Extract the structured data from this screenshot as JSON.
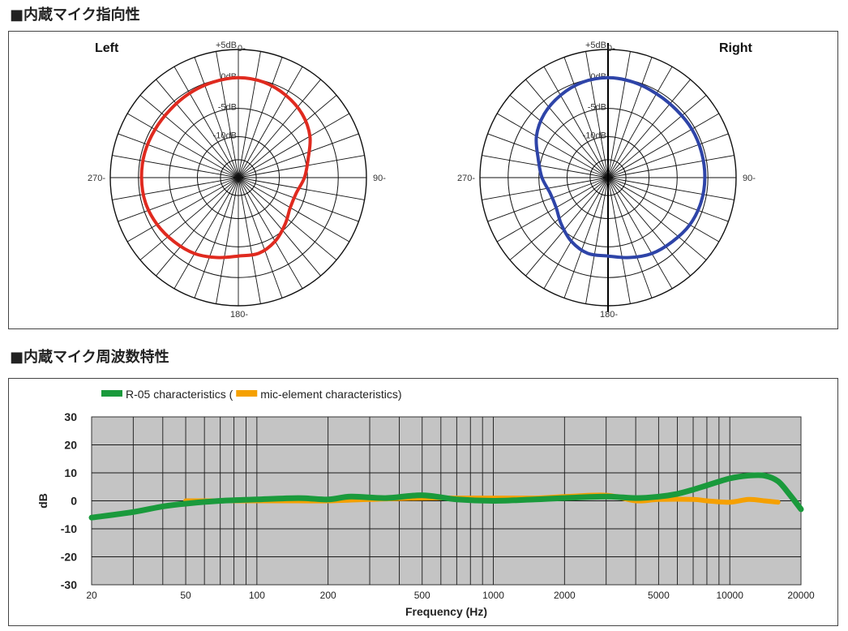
{
  "section1": {
    "title": "■内蔵マイク指向性"
  },
  "section2": {
    "title": "■内蔵マイク周波数特性"
  },
  "chart_data": [
    {
      "type": "polar",
      "title": "Left",
      "rings_db": [
        "+5dB",
        "0dB",
        "-5dB",
        "-10dB"
      ],
      "angle_labels": [
        "0-",
        "90-",
        "180-",
        "270-"
      ],
      "line_color": "#e02a1f",
      "series": [
        {
          "angles_deg": [
            0,
            15,
            30,
            45,
            60,
            75,
            90,
            105,
            120,
            135,
            150,
            165,
            180,
            195,
            210,
            225,
            240,
            255,
            270,
            285,
            300,
            315,
            330,
            345
          ],
          "level_db": [
            0,
            -0.2,
            -0.8,
            -1.6,
            -2.8,
            -4.5,
            -5.5,
            -6.5,
            -6.5,
            -5.5,
            -4.3,
            -3.5,
            -3.5,
            -2.8,
            -2.0,
            -1.5,
            -1.0,
            -0.6,
            -0.5,
            -0.5,
            -0.6,
            -0.6,
            -0.4,
            -0.2
          ]
        }
      ]
    },
    {
      "type": "polar",
      "title": "Right",
      "rings_db": [
        "+5dB",
        "0dB",
        "-5dB",
        "-10dB"
      ],
      "angle_labels": [
        "0-",
        "90-",
        "180-",
        "270-"
      ],
      "line_color": "#2e44a8",
      "series": [
        {
          "angles_deg": [
            0,
            15,
            30,
            45,
            60,
            75,
            90,
            105,
            120,
            135,
            150,
            165,
            180,
            195,
            210,
            225,
            240,
            255,
            270,
            285,
            300,
            315,
            330,
            345
          ],
          "level_db": [
            0,
            -0.2,
            -0.5,
            -0.6,
            -0.5,
            -0.5,
            -0.5,
            -0.6,
            -0.9,
            -1.5,
            -2.0,
            -2.8,
            -3.5,
            -3.5,
            -4.3,
            -5.5,
            -6.5,
            -6.5,
            -5.5,
            -4.5,
            -2.8,
            -1.6,
            -0.8,
            -0.2
          ]
        }
      ]
    },
    {
      "type": "line",
      "xscale": "log",
      "xlim": [
        20,
        20000
      ],
      "ylim": [
        -30,
        30
      ],
      "yticks": [
        "30",
        "20",
        "10",
        "0",
        "-10",
        "-20",
        "-30"
      ],
      "xtick_labels": [
        "20",
        "50",
        "100",
        "200",
        "500",
        "1000",
        "2000",
        "5000",
        "10000",
        "20000"
      ],
      "xlabel": "Frequency (Hz)",
      "ylabel": "dB",
      "grid": true,
      "legend": "top-left",
      "series": [
        {
          "name": "R-05 characteristics (",
          "color": "#1a9a3c",
          "x": [
            20,
            30,
            40,
            50,
            70,
            100,
            150,
            200,
            250,
            350,
            500,
            700,
            1000,
            1500,
            2000,
            3000,
            4000,
            5000,
            6000,
            7000,
            8000,
            10000,
            12000,
            14000,
            16000,
            18000,
            20000
          ],
          "y": [
            -6,
            -4,
            -2,
            -1,
            0,
            0.5,
            1,
            0.5,
            1.5,
            1,
            2,
            0.5,
            0,
            0.5,
            1,
            1.5,
            1,
            1.5,
            2.5,
            4,
            5.5,
            8,
            9,
            9,
            7,
            2,
            -3
          ]
        },
        {
          "name": "mic-element characteristics)",
          "color": "#f5a000",
          "x": [
            50,
            70,
            100,
            150,
            200,
            300,
            500,
            700,
            1000,
            1500,
            2000,
            3000,
            4000,
            5000,
            7000,
            8000,
            10000,
            12000,
            14000,
            16000
          ],
          "y": [
            0,
            0,
            0,
            0,
            0,
            0.5,
            1,
            1,
            1,
            1,
            1.5,
            2,
            0,
            0.5,
            0.5,
            0,
            -0.5,
            0.5,
            0,
            -0.5
          ]
        }
      ]
    }
  ]
}
